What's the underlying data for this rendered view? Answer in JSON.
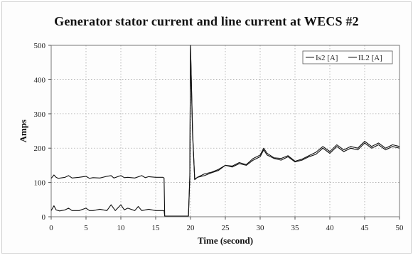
{
  "chart_data": {
    "type": "line",
    "title": "Generator stator current and line current at WECS #2",
    "xlabel": "Time (second)",
    "ylabel": "Amps",
    "xlim": [
      0,
      50
    ],
    "ylim": [
      0,
      500
    ],
    "x_ticks": [
      0,
      5,
      10,
      15,
      20,
      25,
      30,
      35,
      40,
      45,
      50
    ],
    "y_ticks": [
      0,
      100,
      200,
      300,
      400,
      500
    ],
    "grid": "dotted",
    "legend_position": "top-right",
    "series": [
      {
        "name": "Is2 [A]",
        "x": [
          0,
          0.4,
          0.7,
          1,
          2,
          2.5,
          3,
          4,
          5,
          5.5,
          6,
          7,
          8,
          8.6,
          9,
          10,
          10.5,
          11,
          12,
          13,
          13.5,
          14,
          15,
          16,
          16.2,
          16.3,
          17,
          19.7,
          19.9,
          20,
          20.3,
          20.6,
          21,
          22,
          23,
          24,
          25,
          26,
          27,
          28,
          29,
          30,
          30.5,
          31,
          32,
          33,
          34,
          35,
          36,
          37,
          38,
          39,
          40,
          41,
          42,
          43,
          44,
          45,
          46,
          47,
          48,
          49,
          50
        ],
        "y": [
          112,
          122,
          115,
          112,
          115,
          120,
          113,
          115,
          118,
          112,
          114,
          113,
          118,
          120,
          113,
          120,
          114,
          115,
          113,
          120,
          114,
          117,
          115,
          115,
          113,
          2,
          2,
          2,
          120,
          500,
          240,
          110,
          115,
          120,
          128,
          135,
          150,
          145,
          155,
          150,
          165,
          175,
          195,
          180,
          170,
          165,
          175,
          160,
          165,
          175,
          182,
          200,
          185,
          205,
          190,
          200,
          195,
          215,
          200,
          210,
          195,
          205,
          200
        ]
      },
      {
        "name": "IL2 [A]",
        "x": [
          0,
          0.4,
          0.7,
          1.2,
          2,
          2.5,
          3,
          4,
          5,
          5.5,
          6,
          7,
          8,
          8.6,
          9.2,
          10,
          10.5,
          11,
          12,
          12.5,
          13,
          14,
          15,
          16,
          16.2,
          16.3,
          17,
          19.7,
          19.9,
          20,
          20.3,
          20.6,
          21,
          22,
          23,
          24,
          25,
          26,
          27,
          28,
          29,
          30,
          30.5,
          31,
          32,
          33,
          34,
          35,
          36,
          37,
          38,
          39,
          40,
          41,
          42,
          43,
          44,
          45,
          46,
          47,
          48,
          49,
          50
        ],
        "y": [
          18,
          32,
          20,
          17,
          20,
          25,
          18,
          18,
          25,
          18,
          18,
          22,
          18,
          35,
          18,
          35,
          20,
          25,
          18,
          30,
          18,
          22,
          18,
          18,
          18,
          2,
          2,
          2,
          110,
          500,
          250,
          108,
          115,
          125,
          130,
          138,
          150,
          148,
          158,
          152,
          170,
          180,
          200,
          185,
          172,
          170,
          178,
          162,
          168,
          178,
          188,
          205,
          190,
          210,
          195,
          205,
          200,
          220,
          205,
          215,
          200,
          210,
          205
        ]
      }
    ]
  }
}
